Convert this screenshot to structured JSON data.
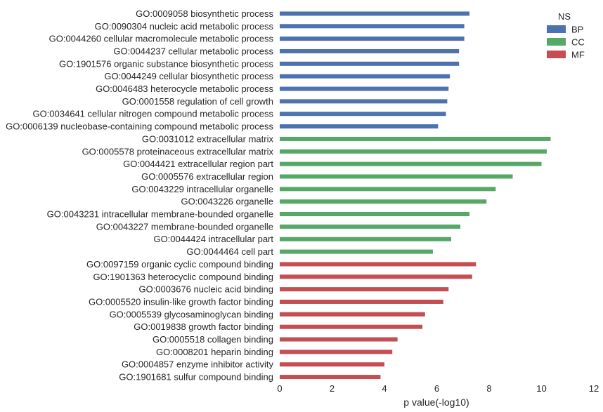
{
  "chart_data": {
    "type": "bar",
    "orientation": "horizontal",
    "xlabel": "p value(-log10)",
    "xlim": [
      0,
      12
    ],
    "xticks": [
      "0",
      "2",
      "4",
      "6",
      "8",
      "10",
      "12"
    ],
    "grid": false,
    "legend": {
      "title": "NS",
      "placement": "top-right",
      "entries": [
        {
          "label": "BP",
          "color": "#4c72b0"
        },
        {
          "label": "CC",
          "color": "#55a868"
        },
        {
          "label": "MF",
          "color": "#c44e52"
        }
      ]
    },
    "bars": [
      {
        "label": "GO:0009058 biosynthetic process",
        "value": 7.25,
        "group": "BP"
      },
      {
        "label": "GO:0090304 nucleic acid metabolic process",
        "value": 7.05,
        "group": "BP"
      },
      {
        "label": "GO:0044260 cellular macromolecule metabolic process",
        "value": 7.05,
        "group": "BP"
      },
      {
        "label": "GO:0044237 cellular metabolic process",
        "value": 6.85,
        "group": "BP"
      },
      {
        "label": "GO:1901576 organic substance biosynthetic process",
        "value": 6.85,
        "group": "BP"
      },
      {
        "label": "GO:0044249 cellular biosynthetic process",
        "value": 6.5,
        "group": "BP"
      },
      {
        "label": "GO:0046483 heterocycle metabolic process",
        "value": 6.45,
        "group": "BP"
      },
      {
        "label": "GO:0001558 regulation of cell growth",
        "value": 6.4,
        "group": "BP"
      },
      {
        "label": "GO:0034641 cellular nitrogen compound metabolic process",
        "value": 6.35,
        "group": "BP"
      },
      {
        "label": "GO:0006139 nucleobase-containing compound metabolic process",
        "value": 6.05,
        "group": "BP"
      },
      {
        "label": "GO:0031012 extracellular matrix",
        "value": 10.35,
        "group": "CC"
      },
      {
        "label": "GO:0005578 proteinaceous extracellular matrix",
        "value": 10.2,
        "group": "CC"
      },
      {
        "label": "GO:0044421 extracellular region part",
        "value": 10.0,
        "group": "CC"
      },
      {
        "label": "GO:0005576 extracellular region",
        "value": 8.9,
        "group": "CC"
      },
      {
        "label": "GO:0043229 intracellular organelle",
        "value": 8.25,
        "group": "CC"
      },
      {
        "label": "GO:0043226 organelle",
        "value": 7.9,
        "group": "CC"
      },
      {
        "label": "GO:0043231 intracellular membrane-bounded organelle",
        "value": 7.25,
        "group": "CC"
      },
      {
        "label": "GO:0043227 membrane-bounded organelle",
        "value": 6.9,
        "group": "CC"
      },
      {
        "label": "GO:0044424 intracellular part",
        "value": 6.55,
        "group": "CC"
      },
      {
        "label": "GO:0044464 cell part",
        "value": 5.85,
        "group": "CC"
      },
      {
        "label": "GO:0097159 organic cyclic compound binding",
        "value": 7.5,
        "group": "MF"
      },
      {
        "label": "GO:1901363 heterocyclic compound binding",
        "value": 7.35,
        "group": "MF"
      },
      {
        "label": "GO:0003676 nucleic acid binding",
        "value": 6.45,
        "group": "MF"
      },
      {
        "label": "GO:0005520 insulin-like growth factor binding",
        "value": 6.25,
        "group": "MF"
      },
      {
        "label": "GO:0005539 glycosaminoglycan binding",
        "value": 5.55,
        "group": "MF"
      },
      {
        "label": "GO:0019838 growth factor binding",
        "value": 5.45,
        "group": "MF"
      },
      {
        "label": "GO:0005518 collagen binding",
        "value": 4.5,
        "group": "MF"
      },
      {
        "label": "GO:0008201 heparin binding",
        "value": 4.3,
        "group": "MF"
      },
      {
        "label": "GO:0004857 enzyme inhibitor activity",
        "value": 4.0,
        "group": "MF"
      },
      {
        "label": "GO:1901681 sulfur compound binding",
        "value": 3.85,
        "group": "MF"
      }
    ]
  }
}
